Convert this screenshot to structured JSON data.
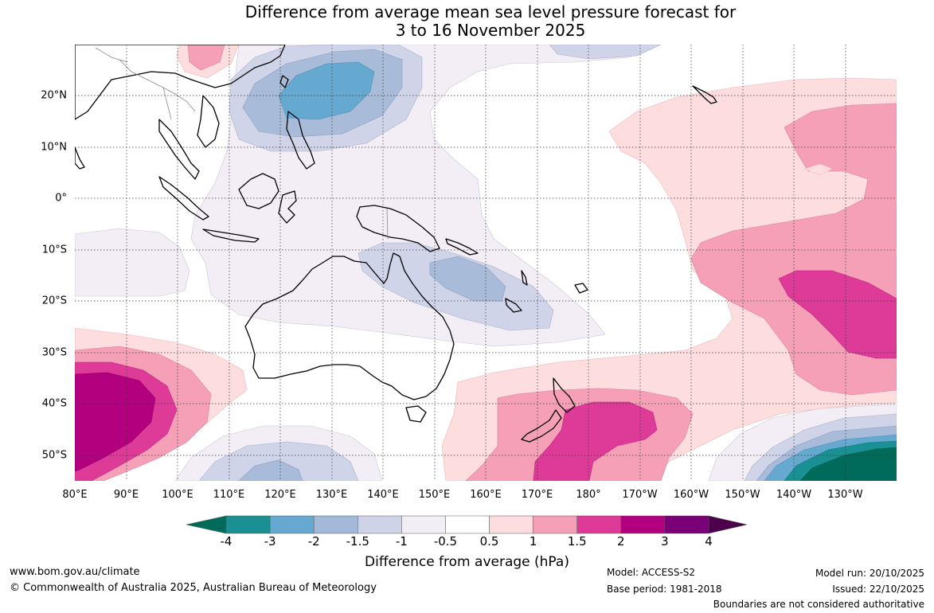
{
  "header": {
    "title_line1": "Difference from average mean sea level pressure forecast for",
    "title_line2": "3 to 16 November 2025"
  },
  "map": {
    "lon_ticks": [
      "80°E",
      "90°E",
      "100°E",
      "110°E",
      "120°E",
      "130°E",
      "140°E",
      "150°E",
      "160°E",
      "170°E",
      "180°",
      "170°W",
      "160°W",
      "150°W",
      "140°W",
      "130°W"
    ],
    "lat_ticks": [
      "20°N",
      "10°N",
      "0°",
      "10°S",
      "20°S",
      "30°S",
      "40°S",
      "50°S"
    ],
    "extent": {
      "lon": [
        80,
        240
      ],
      "lat": [
        -55,
        30
      ]
    }
  },
  "colorbar": {
    "label": "Difference from average (hPa)",
    "tick_labels": [
      "-4",
      "-3",
      "-2",
      "-1.5",
      "-1",
      "-0.5",
      "0.5",
      "1",
      "1.5",
      "2",
      "3",
      "4"
    ],
    "colors": [
      "#006b5a",
      "#1a9094",
      "#66a9d0",
      "#a3b9da",
      "#cfd3e8",
      "#f2eef6",
      "#ffffff",
      "#fddddd",
      "#f6a0b7",
      "#de3b99",
      "#b2007f",
      "#7a0077",
      "#4d004b"
    ]
  },
  "footer": {
    "website": "www.bom.gov.au/climate",
    "copyright": "© Commonwealth of Australia 2025, Australian Bureau of Meteorology",
    "model": "Model: ACCESS-S2",
    "base_period": "Base period: 1981-2018",
    "model_run": "Model run: 20/10/2025",
    "issued": "Issued: 22/10/2025",
    "disclaimer": "Boundaries are not considered authoritative"
  }
}
